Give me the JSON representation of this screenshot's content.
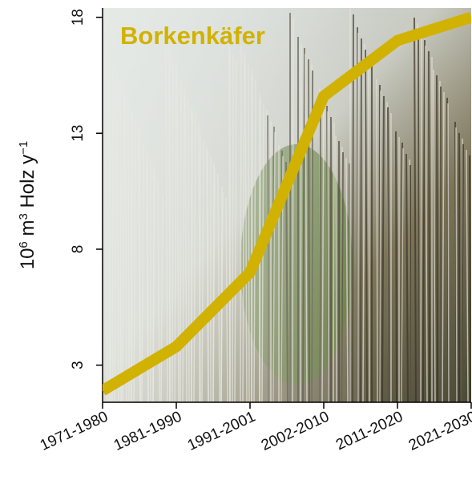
{
  "chart_data": {
    "type": "line",
    "annotation": "Borkenkäfer",
    "ylabel_parts": [
      {
        "text": "10"
      },
      {
        "text": "6",
        "sup": true
      },
      {
        "text": " m"
      },
      {
        "text": "3",
        "sup": true
      },
      {
        "text": " Holz y"
      },
      {
        "text": "−1",
        "sup": true
      }
    ],
    "categories": [
      "1971-1980",
      "1981-1990",
      "1991-2001",
      "2002-2010",
      "2011-2020",
      "2021-2030"
    ],
    "values": [
      1.9,
      3.8,
      7.0,
      14.6,
      17.0,
      18.0
    ],
    "color": "#d2b200",
    "ylim": [
      1.4,
      18.4
    ],
    "yticks": [
      3,
      8,
      13,
      18
    ]
  }
}
